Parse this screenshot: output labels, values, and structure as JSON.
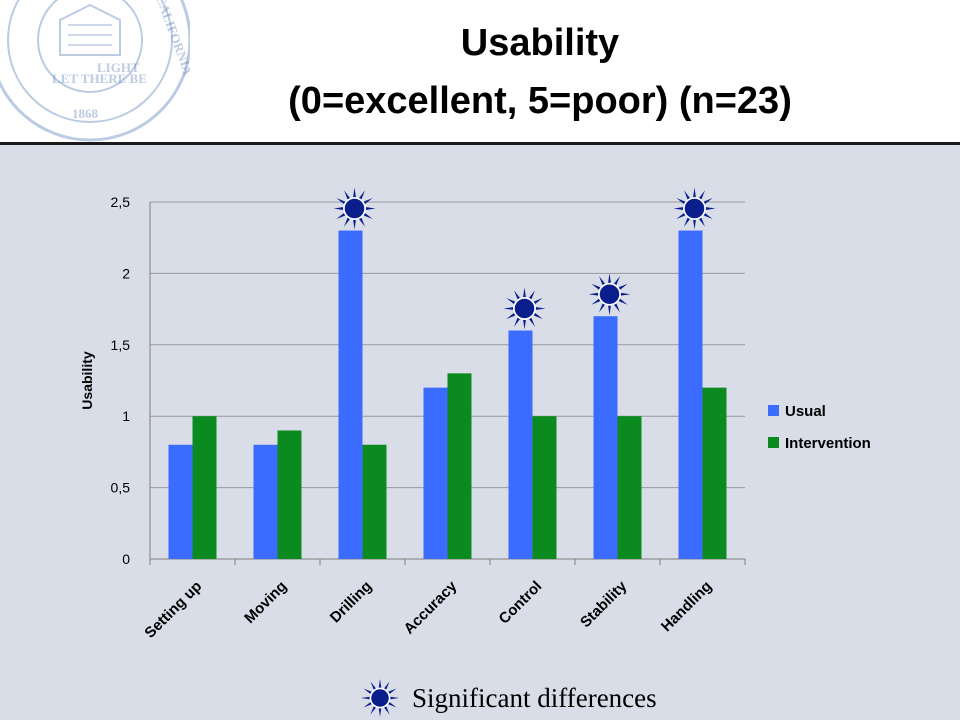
{
  "title": {
    "line1": "Usability",
    "line2": "(0=excellent, 5=poor) (n=23)"
  },
  "seal_text": [
    "LET THERE BE",
    "LIGHT",
    "1868",
    "CALIFORNIA"
  ],
  "note": {
    "label": "Significant differences",
    "icon": "star-burst-icon"
  },
  "colors": {
    "usual": "#3b6cff",
    "intervention": "#0b8a1f",
    "star_fill": "#0a1f8c",
    "background": "#d8dde8"
  },
  "chart_data": {
    "type": "bar",
    "categories": [
      "Setting up",
      "Moving",
      "Drilling",
      "Accuracy",
      "Control",
      "Stability",
      "Handling"
    ],
    "series": [
      {
        "name": "Usual",
        "values": [
          0.8,
          0.8,
          2.3,
          1.2,
          1.6,
          1.7,
          2.3
        ]
      },
      {
        "name": "Intervention",
        "values": [
          1.0,
          0.9,
          0.8,
          1.3,
          1.0,
          1.0,
          1.2
        ]
      }
    ],
    "ylabel": "Usability",
    "xlabel": "",
    "ylim": [
      0,
      2.5
    ],
    "yticks": [
      "0",
      "0,5",
      "1",
      "1,5",
      "2",
      "2,5"
    ],
    "ytick_values": [
      0,
      0.5,
      1,
      1.5,
      2,
      2.5
    ],
    "grid": true,
    "legend_position": "right",
    "significant": [
      "Drilling",
      "Control",
      "Stability",
      "Handling"
    ]
  }
}
